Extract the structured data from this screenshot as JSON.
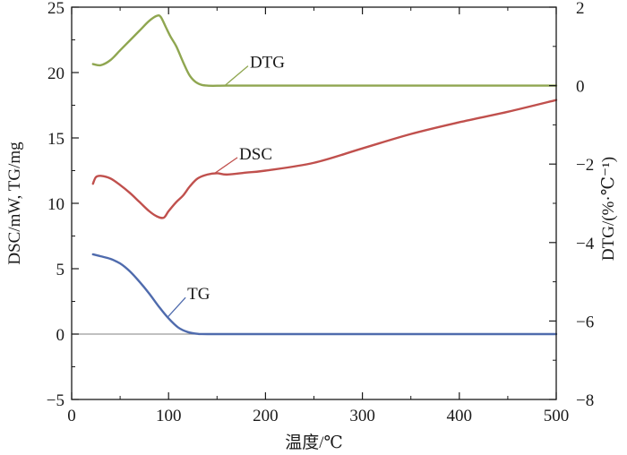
{
  "chart_data": {
    "type": "line",
    "title": "",
    "xlabel": "温度/℃",
    "ylabel_left": "DSC/mW, TG/mg",
    "ylabel_right": "DTG/(%·℃⁻¹)",
    "xlim": [
      0,
      500
    ],
    "ylim_left": [
      -5,
      25
    ],
    "ylim_right": [
      -8,
      2
    ],
    "x_ticks": [
      0,
      100,
      200,
      300,
      400,
      500
    ],
    "x_tick_labels": [
      "0",
      "100",
      "200",
      "300",
      "400",
      "500"
    ],
    "y_left_ticks": [
      -5,
      0,
      5,
      10,
      15,
      20,
      25
    ],
    "y_left_tick_labels": [
      "−5",
      "0",
      "5",
      "10",
      "15",
      "20",
      "25"
    ],
    "y_right_ticks": [
      -8,
      -6,
      -4,
      -2,
      0,
      2
    ],
    "y_right_tick_labels": [
      "−8",
      "−6",
      "−4",
      "−2",
      "0",
      "2"
    ],
    "baseline_y": 0,
    "colors": {
      "DTG": "#8fa650",
      "DSC": "#c0504d",
      "TG": "#4f6bad",
      "baseline": "#9a9a9a",
      "axes": "#1a1a1a"
    },
    "series": [
      {
        "name": "DTG",
        "axis": "right",
        "points": [
          [
            22,
            0.55
          ],
          [
            30,
            0.52
          ],
          [
            40,
            0.65
          ],
          [
            50,
            0.9
          ],
          [
            60,
            1.15
          ],
          [
            70,
            1.4
          ],
          [
            80,
            1.65
          ],
          [
            88,
            1.78
          ],
          [
            92,
            1.75
          ],
          [
            97,
            1.5
          ],
          [
            102,
            1.25
          ],
          [
            108,
            1.0
          ],
          [
            115,
            0.6
          ],
          [
            122,
            0.25
          ],
          [
            130,
            0.06
          ],
          [
            140,
            0.0
          ],
          [
            160,
            0.0
          ],
          [
            200,
            0.0
          ],
          [
            300,
            0.0
          ],
          [
            400,
            0.0
          ],
          [
            500,
            0.0
          ]
        ]
      },
      {
        "name": "DSC",
        "axis": "left",
        "points": [
          [
            22,
            11.5
          ],
          [
            25,
            12.0
          ],
          [
            30,
            12.1
          ],
          [
            40,
            11.9
          ],
          [
            50,
            11.4
          ],
          [
            60,
            10.8
          ],
          [
            70,
            10.1
          ],
          [
            80,
            9.4
          ],
          [
            88,
            9.0
          ],
          [
            95,
            8.9
          ],
          [
            100,
            9.4
          ],
          [
            108,
            10.1
          ],
          [
            115,
            10.6
          ],
          [
            122,
            11.3
          ],
          [
            130,
            11.9
          ],
          [
            140,
            12.2
          ],
          [
            150,
            12.3
          ],
          [
            160,
            12.2
          ],
          [
            180,
            12.35
          ],
          [
            200,
            12.5
          ],
          [
            250,
            13.1
          ],
          [
            300,
            14.2
          ],
          [
            350,
            15.3
          ],
          [
            400,
            16.2
          ],
          [
            450,
            17.0
          ],
          [
            500,
            17.9
          ]
        ]
      },
      {
        "name": "TG",
        "axis": "left",
        "points": [
          [
            22,
            6.1
          ],
          [
            30,
            5.95
          ],
          [
            40,
            5.75
          ],
          [
            50,
            5.4
          ],
          [
            60,
            4.8
          ],
          [
            70,
            4.0
          ],
          [
            80,
            3.1
          ],
          [
            90,
            2.1
          ],
          [
            100,
            1.2
          ],
          [
            110,
            0.5
          ],
          [
            120,
            0.15
          ],
          [
            130,
            0.02
          ],
          [
            140,
            0.0
          ],
          [
            200,
            0.0
          ],
          [
            300,
            0.0
          ],
          [
            400,
            0.0
          ],
          [
            500,
            0.0
          ]
        ]
      }
    ],
    "annotations": [
      {
        "text": "DTG",
        "series": "DTG",
        "tip_x": 158
      },
      {
        "text": "DSC",
        "series": "DSC",
        "tip_x": 147
      },
      {
        "text": "TG",
        "series": "TG",
        "tip_x": 99
      }
    ]
  }
}
